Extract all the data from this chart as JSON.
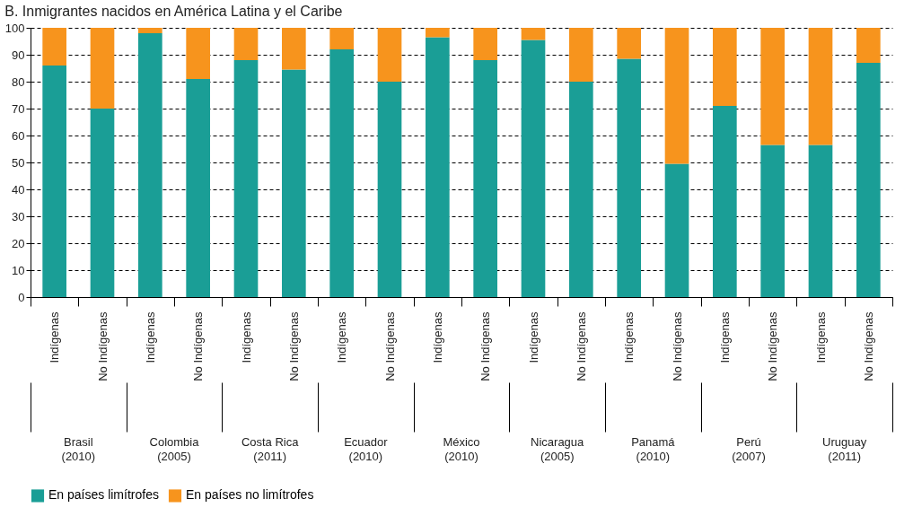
{
  "chart_data": {
    "type": "bar",
    "title": "B. Inmigrantes nacidos en América Latina y el Caribe",
    "categories": [
      "Indígenas",
      "No Indígenas",
      "Indígenas",
      "No Indígenas",
      "Indígenas",
      "No Indígenas",
      "Indígenas",
      "No Indígenas",
      "Indígenas",
      "No Indígenas",
      "Indígenas",
      "No Indígenas",
      "Indígenas",
      "No Indígenas",
      "Indígenas",
      "No Indígenas",
      "Indígenas",
      "No Indígenas"
    ],
    "series": [
      {
        "name": "En países limítrofes",
        "color": "#1a9e96",
        "values": [
          86,
          70,
          98,
          81,
          88,
          84.5,
          92,
          80,
          96.5,
          88,
          95.5,
          80,
          88.5,
          49.5,
          71,
          56.5,
          56.5,
          87
        ]
      },
      {
        "name": "En países no limítrofes",
        "color": "#f7941d",
        "values": [
          14,
          30,
          2,
          19,
          12,
          15.5,
          8,
          20,
          3.5,
          12,
          4.5,
          20,
          11.5,
          50.5,
          29,
          43.5,
          43.5,
          13
        ]
      }
    ],
    "stacked": true,
    "ylim": [
      0,
      100
    ],
    "yticks": [
      0,
      10,
      20,
      30,
      40,
      50,
      60,
      70,
      80,
      90,
      100
    ],
    "grid": "y",
    "legend": "bottom",
    "annotations": [
      "Brasil\n(2010)",
      "Colombia\n(2005)",
      "Costa Rica\n(2011)",
      "Ecuador\n(2010)",
      "México\n(2010)",
      "Nicaragua\n(2005)",
      "Panamá\n(2010)",
      "Perú\n(2007)",
      "Uruguay\n(2011)"
    ]
  }
}
